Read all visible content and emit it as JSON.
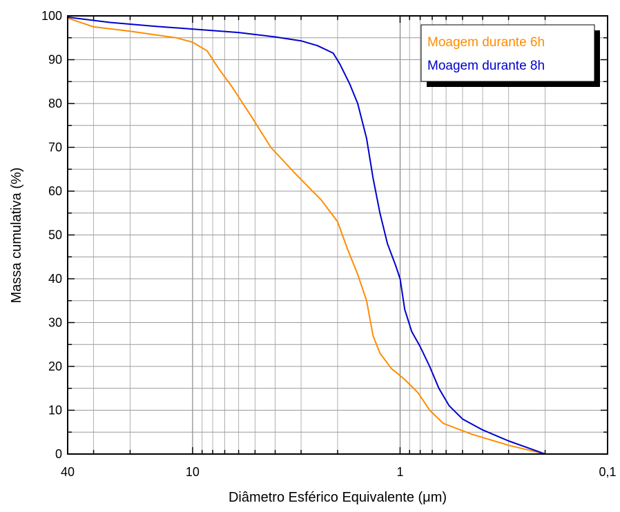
{
  "chart_data": {
    "type": "line",
    "title": "",
    "xlabel": "Diâmetro Esférico Equivalente (μm)",
    "ylabel": "Massa cumulativa (%)",
    "x_scale": "log",
    "x_reversed": true,
    "xlim": [
      40,
      0.1
    ],
    "ylim": [
      0,
      100
    ],
    "x_ticks": [
      {
        "value": 40,
        "label": "40"
      },
      {
        "value": 10,
        "label": "10"
      },
      {
        "value": 1,
        "label": "1"
      },
      {
        "value": 0.1,
        "label": "0,1"
      }
    ],
    "y_ticks": [
      0,
      10,
      20,
      30,
      40,
      50,
      60,
      70,
      80,
      90,
      100
    ],
    "y_tick_labels": [
      "0",
      "10",
      "20",
      "30",
      "40",
      "50",
      "60",
      "70",
      "80",
      "90",
      "100"
    ],
    "grid": true,
    "legend_position": "top-right",
    "series": [
      {
        "name": "Moagem durante 6h",
        "color": "#ff8c00",
        "points": [
          [
            40,
            99.5
          ],
          [
            30,
            97.5
          ],
          [
            20,
            96.5
          ],
          [
            12,
            95.0
          ],
          [
            10,
            94.0
          ],
          [
            8.5,
            92.0
          ],
          [
            7.5,
            88.0
          ],
          [
            6.5,
            84.0
          ],
          [
            5.2,
            77.0
          ],
          [
            4.2,
            70.0
          ],
          [
            3.2,
            64.0
          ],
          [
            2.4,
            58.0
          ],
          [
            2.0,
            53.0
          ],
          [
            1.8,
            47.0
          ],
          [
            1.6,
            41.0
          ],
          [
            1.45,
            35.0
          ],
          [
            1.35,
            27.0
          ],
          [
            1.25,
            23.0
          ],
          [
            1.1,
            19.5
          ],
          [
            0.95,
            17.0
          ],
          [
            0.82,
            14.0
          ],
          [
            0.72,
            10.0
          ],
          [
            0.62,
            7.0
          ],
          [
            0.45,
            4.5
          ],
          [
            0.3,
            2.0
          ],
          [
            0.2,
            0.0
          ]
        ]
      },
      {
        "name": "Moagem durante 8h",
        "color": "#0000cd",
        "points": [
          [
            40,
            99.7
          ],
          [
            25,
            98.5
          ],
          [
            15,
            97.6
          ],
          [
            10,
            97.0
          ],
          [
            6,
            96.2
          ],
          [
            4,
            95.2
          ],
          [
            3,
            94.3
          ],
          [
            2.5,
            93.2
          ],
          [
            2.1,
            91.5
          ],
          [
            1.95,
            89.0
          ],
          [
            1.75,
            84.5
          ],
          [
            1.6,
            80.0
          ],
          [
            1.45,
            72.0
          ],
          [
            1.35,
            63.0
          ],
          [
            1.25,
            55.0
          ],
          [
            1.15,
            48.0
          ],
          [
            1.05,
            43.0
          ],
          [
            1.0,
            40.0
          ],
          [
            0.95,
            33.0
          ],
          [
            0.88,
            28.0
          ],
          [
            0.8,
            24.5
          ],
          [
            0.72,
            20.0
          ],
          [
            0.65,
            15.0
          ],
          [
            0.58,
            11.0
          ],
          [
            0.5,
            8.0
          ],
          [
            0.4,
            5.5
          ],
          [
            0.3,
            3.0
          ],
          [
            0.2,
            0.0
          ]
        ]
      }
    ]
  }
}
